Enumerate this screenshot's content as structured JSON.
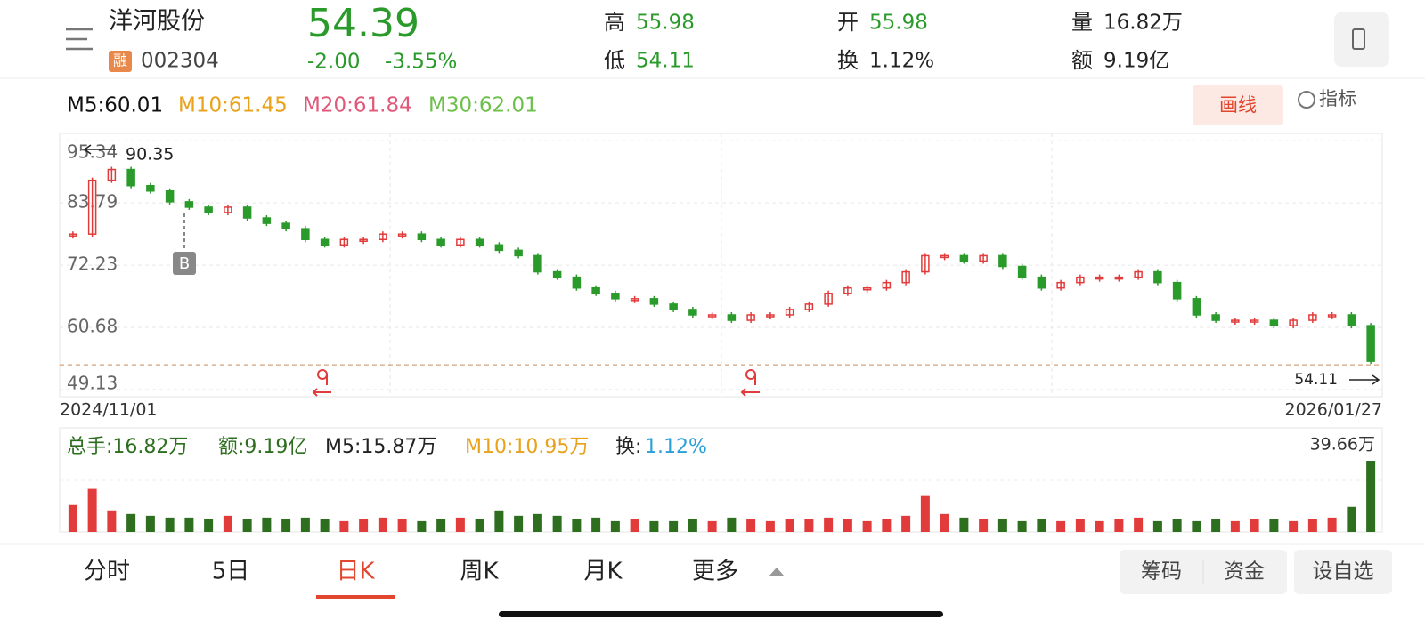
{
  "header": {
    "name": "洋河股份",
    "badge": "融",
    "code": "002304",
    "price": "54.39",
    "change": "-2.00",
    "change_pct": "-3.55%",
    "quotes": [
      {
        "label": "高",
        "value": "55.98"
      },
      {
        "label": "低",
        "value": "54.11"
      },
      {
        "label": "开",
        "value": "55.98"
      },
      {
        "label": "换",
        "value": "1.12%"
      },
      {
        "label": "量",
        "value": "16.82万"
      },
      {
        "label": "额",
        "value": "9.19亿"
      }
    ]
  },
  "ma_legend": [
    "M5:60.01",
    "M10:61.45",
    "M20:61.84",
    "M30:62.01"
  ],
  "tools": [
    "画线",
    "指标"
  ],
  "chart_data": {
    "type": "candlestick",
    "ylim": [
      47.8,
      96.7
    ],
    "yticks": [
      95.34,
      83.79,
      72.23,
      60.68,
      49.13
    ],
    "x_labels": [
      "2024/11/01",
      "2026/01/27"
    ],
    "annotations": [
      "90.35",
      "54.11"
    ],
    "marker": "B",
    "close": [
      78,
      88,
      90,
      87,
      86,
      84,
      83,
      82,
      83,
      81,
      80,
      79,
      77,
      76,
      77,
      77,
      78,
      78,
      77,
      76,
      77,
      76,
      75,
      74,
      71,
      70,
      68,
      67,
      66,
      66,
      65,
      64,
      63,
      63,
      62,
      63,
      63,
      64,
      65,
      67,
      68,
      68,
      69,
      71,
      74,
      74,
      73,
      74,
      72,
      70,
      68,
      69,
      70,
      70,
      70,
      71,
      69,
      66,
      63,
      62,
      62,
      62,
      61,
      62,
      63,
      63,
      61,
      54.39
    ],
    "volume": [
      15,
      24,
      12,
      10,
      9,
      8,
      8,
      7,
      9,
      7,
      8,
      7,
      8,
      7,
      6,
      7,
      8,
      7,
      6,
      7,
      8,
      7,
      12,
      9,
      10,
      9,
      7,
      8,
      6,
      7,
      6,
      6,
      7,
      6,
      8,
      7,
      6,
      7,
      7,
      8,
      7,
      6,
      7,
      9,
      20,
      10,
      8,
      7,
      7,
      6,
      7,
      6,
      7,
      6,
      7,
      8,
      6,
      7,
      6,
      7,
      6,
      7,
      7,
      6,
      7,
      8,
      14,
      39.66
    ],
    "volume_ylim": [
      0,
      {
        "value": 39.66,
        "label": "39.66万"
      }
    ],
    "volume_legend": [
      "总手:16.82万",
      "额:9.19亿",
      "M5:15.87万",
      "M10:10.95万",
      "换:"
    ],
    "turnover": "1.12%"
  },
  "tabs": [
    "分时",
    "5日",
    "日K",
    "周K",
    "月K",
    "更多"
  ],
  "buttons": [
    "筹码",
    "资金",
    "设自选"
  ]
}
